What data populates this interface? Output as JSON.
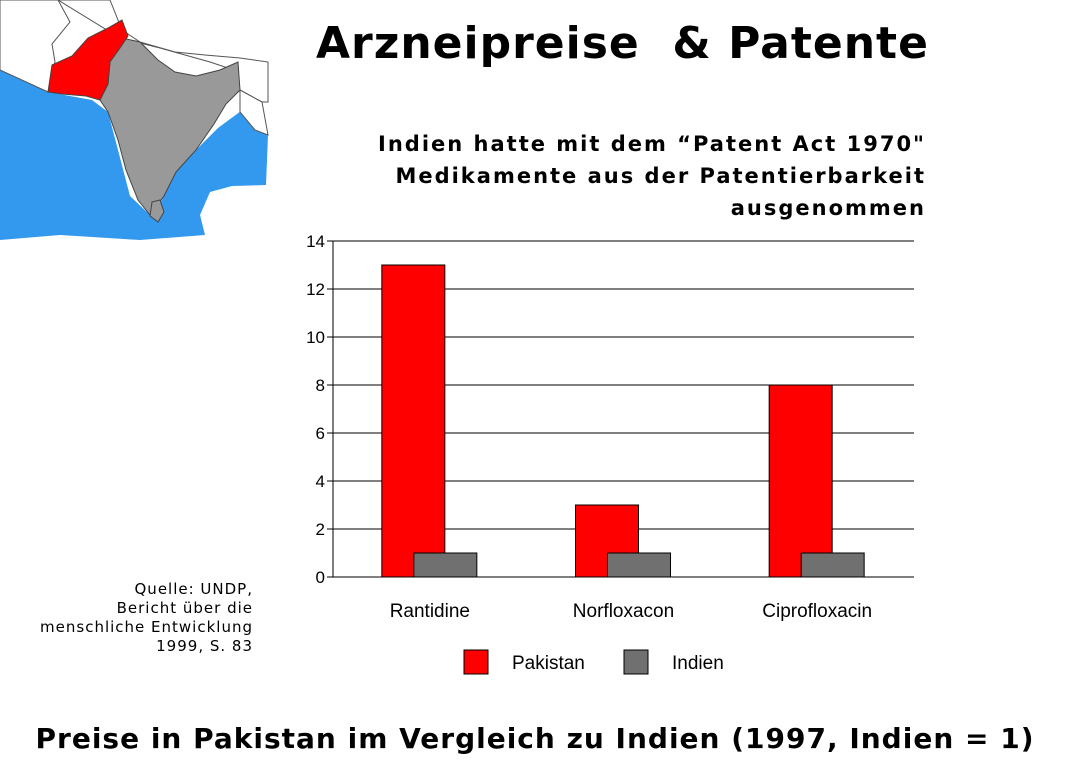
{
  "slide": {
    "title": "Arzneipreise  & Patente",
    "subtitle_lines": [
      "Indien hatte mit dem “Patent Act 1970\"",
      "Medikamente aus der Patentierbarkeit",
      "ausgenommen"
    ],
    "source_lines": [
      "Quelle: UNDP,",
      "Bericht über die",
      "menschliche Entwicklung",
      "1999, S.  83"
    ],
    "caption": "Preise in Pakistan im Vergleich zu Indien (1997, Indien = 1)"
  },
  "colors": {
    "pakistan": "#ff0000",
    "indien": "#707070",
    "sea": "#3399ee",
    "land": "#999999"
  },
  "chart_data": {
    "type": "bar",
    "categories": [
      "Rantidine",
      "Norfloxacon",
      "Ciprofloxacin"
    ],
    "series": [
      {
        "name": "Pakistan",
        "values": [
          13,
          3,
          8
        ],
        "color": "#ff0000"
      },
      {
        "name": "Indien",
        "values": [
          1,
          1,
          1
        ],
        "color": "#707070"
      }
    ],
    "ylim": [
      0,
      14
    ],
    "yticks": [
      0,
      2,
      4,
      6,
      8,
      10,
      12,
      14
    ],
    "grid": true,
    "legend_position": "bottom"
  }
}
